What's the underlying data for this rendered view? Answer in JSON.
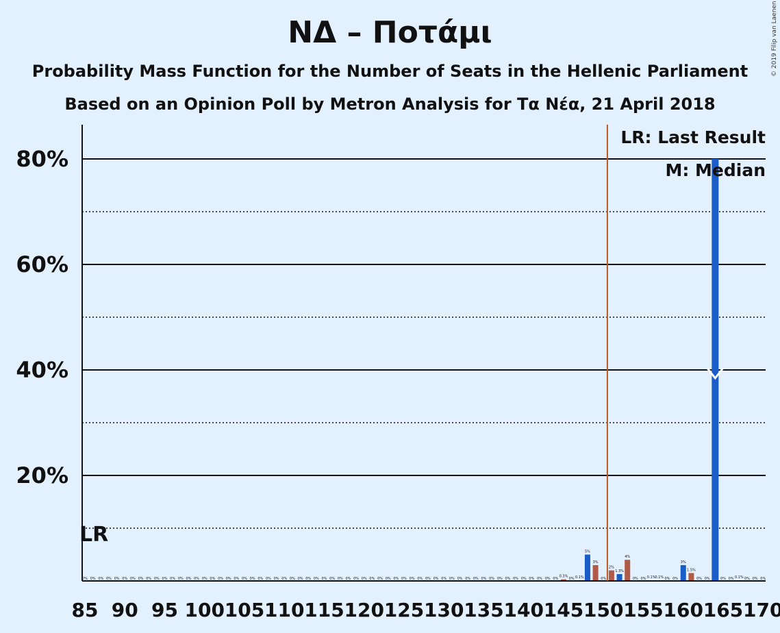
{
  "title": "ΝΔ – Ποτάμι",
  "subtitle1": "Probability Mass Function for the Number of Seats in the Hellenic Parliament",
  "subtitle2": "Based on an Opinion Poll by Metron Analysis for Τα Νέα, 21 April 2018",
  "copyright": "© 2019 Filip van Laenen",
  "legend": {
    "last_result": "LR: Last Result",
    "median": "M: Median",
    "lr_marker": "LR",
    "median_marker": "M"
  },
  "colors": {
    "background": "#e3f0fd",
    "bar_primary": "#1a5cc8",
    "bar_secondary": "#b05a48",
    "last_result_line": "#b85a1e"
  },
  "chart_data": {
    "type": "bar",
    "xlim": [
      85,
      170
    ],
    "ylim": [
      0,
      85
    ],
    "x_ticks": [
      85,
      90,
      95,
      100,
      105,
      110,
      115,
      120,
      125,
      130,
      135,
      140,
      145,
      150,
      155,
      160,
      165,
      170
    ],
    "y_ticks_major": [
      20,
      40,
      60,
      80
    ],
    "y_ticks_minor": [
      10,
      30,
      50,
      70
    ],
    "y_tick_labels": [
      "20%",
      "40%",
      "60%",
      "80%"
    ],
    "last_result": 151,
    "median": 164,
    "series": [
      {
        "values": [
          {
            "x": 145,
            "y": 0.3,
            "label": "0.3%"
          },
          {
            "x": 147,
            "y": 0.1,
            "label": "0.1%"
          },
          {
            "x": 148,
            "y": 5,
            "label": "5%"
          },
          {
            "x": 149,
            "y": 3,
            "label": "3%"
          },
          {
            "x": 151,
            "y": 2,
            "label": "2%"
          },
          {
            "x": 152,
            "y": 1.3,
            "label": "1.3%"
          },
          {
            "x": 153,
            "y": 4,
            "label": "4%"
          },
          {
            "x": 156,
            "y": 0.1,
            "label": "0.1%"
          },
          {
            "x": 157,
            "y": 0.1,
            "label": "0.1%"
          },
          {
            "x": 160,
            "y": 3,
            "label": "3%"
          },
          {
            "x": 161,
            "y": 1.5,
            "label": "1.5%"
          },
          {
            "x": 164,
            "y": 80,
            "label": ""
          },
          {
            "x": 167,
            "y": 0.1,
            "label": "0.1%"
          }
        ]
      }
    ],
    "zero_label": "0%"
  }
}
